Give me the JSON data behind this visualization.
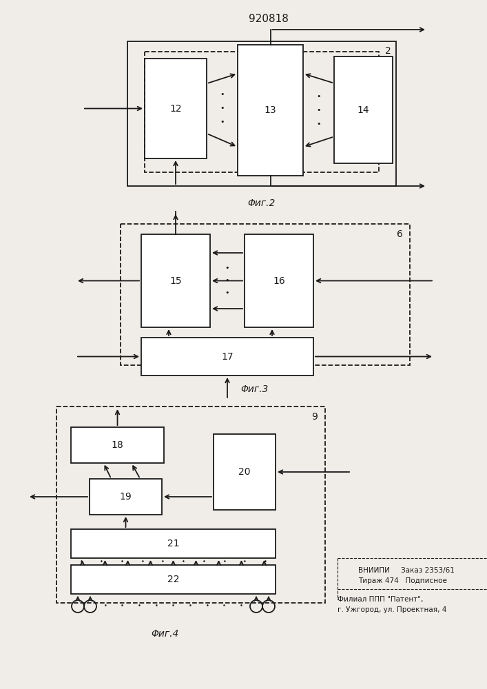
{
  "title": "920818",
  "bg_color": "#f0ede8",
  "line_color": "#1a1a1a",
  "fig2_caption": "Φиг.2",
  "fig3_caption": "Φиг.3",
  "fig4_caption": "Φиг.4",
  "fig2_label": "2",
  "fig3_label": "6",
  "fig4_label": "9",
  "footer_line1": "ВНИИПИ     Заказ 2353/61",
  "footer_line2": "Тираж 474   Подписное",
  "footer_line3": "Филиал ППП \"Патент\",",
  "footer_line4": "г. Ужгород, ул. Проектная, 4"
}
